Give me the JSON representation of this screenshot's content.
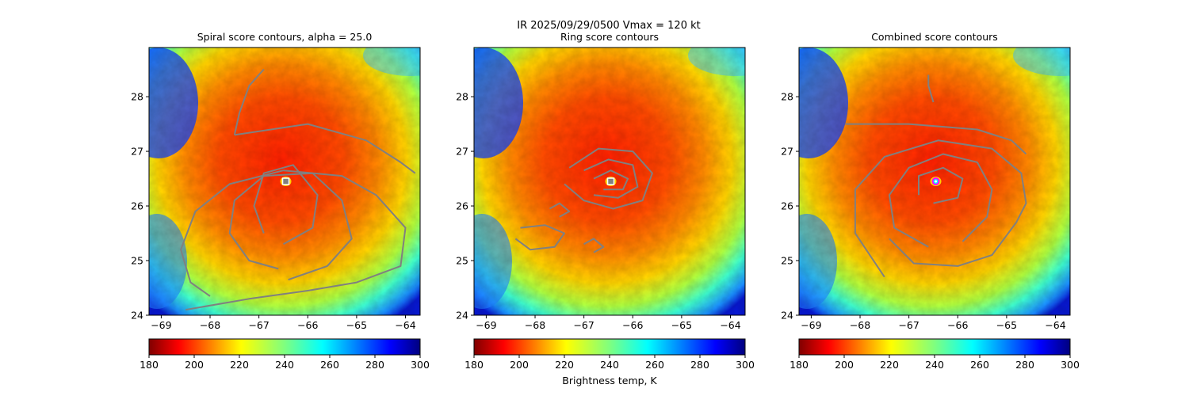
{
  "suptitle": "IR  2025/09/29/0500    Vmax = 120 kt",
  "colorbar": {
    "label": "Brightness temp, K",
    "min": 180,
    "max": 300,
    "ticks": [
      180,
      200,
      220,
      240,
      260,
      280,
      300
    ],
    "colormap": "jet_r"
  },
  "colors": {
    "contour": "#808080",
    "eye_max": "#00ffff"
  },
  "chart_data": [
    {
      "type": "heatmap",
      "title": "Spiral score contours, alpha = 25.0",
      "xlim": [
        -69.25,
        -63.7
      ],
      "ylim": [
        24.0,
        28.9
      ],
      "xticks": [
        -69,
        -68,
        -67,
        -66,
        -65,
        -64
      ],
      "yticks": [
        24,
        25,
        26,
        27,
        28
      ],
      "marker": {
        "lon": -66.45,
        "lat": 26.45,
        "style": "square"
      },
      "contours": [
        [
          [
            -68.5,
            24.1
          ],
          [
            -67.2,
            24.3
          ],
          [
            -66.0,
            24.45
          ],
          [
            -65.0,
            24.6
          ],
          [
            -64.1,
            24.9
          ],
          [
            -64.0,
            25.6
          ],
          [
            -64.6,
            26.2
          ],
          [
            -65.3,
            26.55
          ],
          [
            -66.5,
            26.65
          ],
          [
            -67.6,
            26.4
          ],
          [
            -68.3,
            25.9
          ],
          [
            -68.6,
            25.2
          ],
          [
            -68.4,
            24.6
          ],
          [
            -68.0,
            24.35
          ]
        ],
        [
          [
            -66.4,
            24.65
          ],
          [
            -65.6,
            24.9
          ],
          [
            -65.1,
            25.4
          ],
          [
            -65.3,
            26.1
          ],
          [
            -65.9,
            26.6
          ],
          [
            -66.9,
            26.55
          ],
          [
            -67.5,
            26.1
          ],
          [
            -67.6,
            25.5
          ],
          [
            -67.2,
            25.0
          ],
          [
            -66.6,
            24.85
          ]
        ],
        [
          [
            -66.5,
            25.3
          ],
          [
            -65.9,
            25.6
          ],
          [
            -65.8,
            26.2
          ],
          [
            -66.3,
            26.75
          ],
          [
            -66.9,
            26.6
          ],
          [
            -67.1,
            26.0
          ],
          [
            -66.9,
            25.5
          ]
        ],
        [
          [
            -67.5,
            27.3
          ],
          [
            -66.0,
            27.5
          ],
          [
            -64.8,
            27.2
          ],
          [
            -64.1,
            26.8
          ],
          [
            -63.8,
            26.6
          ]
        ],
        [
          [
            -67.5,
            27.3
          ],
          [
            -67.4,
            27.7
          ],
          [
            -67.2,
            28.2
          ],
          [
            -66.9,
            28.5
          ]
        ]
      ]
    },
    {
      "type": "heatmap",
      "title": "Ring score contours",
      "xlim": [
        -69.25,
        -63.7
      ],
      "ylim": [
        24.0,
        28.9
      ],
      "xticks": [
        -69,
        -68,
        -67,
        -66,
        -65,
        -64
      ],
      "yticks": [
        24,
        25,
        26,
        27,
        28
      ],
      "marker": {
        "lon": -66.45,
        "lat": 26.45,
        "style": "square"
      },
      "contours": [
        [
          [
            -67.3,
            26.7
          ],
          [
            -66.7,
            27.05
          ],
          [
            -66.0,
            27.0
          ],
          [
            -65.6,
            26.6
          ],
          [
            -65.8,
            26.1
          ],
          [
            -66.4,
            25.95
          ],
          [
            -67.0,
            26.1
          ],
          [
            -67.4,
            26.4
          ]
        ],
        [
          [
            -67.0,
            26.65
          ],
          [
            -66.5,
            26.85
          ],
          [
            -66.0,
            26.75
          ],
          [
            -65.9,
            26.35
          ],
          [
            -66.3,
            26.15
          ],
          [
            -66.8,
            26.2
          ]
        ],
        [
          [
            -66.8,
            26.5
          ],
          [
            -66.45,
            26.65
          ],
          [
            -66.1,
            26.5
          ],
          [
            -66.2,
            26.3
          ],
          [
            -66.6,
            26.3
          ]
        ],
        [
          [
            -68.3,
            25.6
          ],
          [
            -67.8,
            25.65
          ],
          [
            -67.4,
            25.5
          ],
          [
            -67.6,
            25.25
          ],
          [
            -68.1,
            25.2
          ],
          [
            -68.4,
            25.4
          ]
        ],
        [
          [
            -67.7,
            25.95
          ],
          [
            -67.5,
            26.05
          ],
          [
            -67.3,
            25.9
          ],
          [
            -67.5,
            25.8
          ]
        ],
        [
          [
            -67.0,
            25.3
          ],
          [
            -66.8,
            25.4
          ],
          [
            -66.6,
            25.25
          ],
          [
            -66.8,
            25.15
          ]
        ]
      ]
    },
    {
      "type": "heatmap",
      "title": "Combined score contours",
      "xlim": [
        -69.25,
        -63.7
      ],
      "ylim": [
        24.0,
        28.9
      ],
      "xticks": [
        -69,
        -68,
        -67,
        -66,
        -65,
        -64
      ],
      "yticks": [
        24,
        25,
        26,
        27,
        28
      ],
      "marker": {
        "lon": -66.45,
        "lat": 26.45,
        "style": "circle"
      },
      "contours": [
        [
          [
            -67.5,
            24.7
          ],
          [
            -68.1,
            25.5
          ],
          [
            -68.1,
            26.3
          ],
          [
            -67.5,
            26.9
          ],
          [
            -66.4,
            27.2
          ],
          [
            -65.3,
            27.05
          ],
          [
            -64.7,
            26.6
          ],
          [
            -64.6,
            26.05
          ],
          [
            -64.8,
            25.7
          ],
          [
            -65.3,
            25.1
          ],
          [
            -66.0,
            24.9
          ],
          [
            -66.9,
            24.95
          ],
          [
            -67.4,
            25.4
          ]
        ],
        [
          [
            -66.6,
            25.25
          ],
          [
            -67.3,
            25.6
          ],
          [
            -67.4,
            26.2
          ],
          [
            -67.0,
            26.7
          ],
          [
            -66.3,
            26.95
          ],
          [
            -65.6,
            26.8
          ],
          [
            -65.3,
            26.3
          ],
          [
            -65.4,
            25.8
          ],
          [
            -65.9,
            25.35
          ]
        ],
        [
          [
            -66.5,
            26.05
          ],
          [
            -66.0,
            26.15
          ],
          [
            -65.9,
            26.5
          ],
          [
            -66.3,
            26.7
          ],
          [
            -66.8,
            26.55
          ],
          [
            -66.8,
            26.2
          ]
        ],
        [
          [
            -68.3,
            27.5
          ],
          [
            -67.0,
            27.5
          ],
          [
            -65.6,
            27.4
          ],
          [
            -64.9,
            27.2
          ],
          [
            -64.6,
            26.95
          ]
        ],
        [
          [
            -66.5,
            27.9
          ],
          [
            -66.6,
            28.2
          ],
          [
            -66.6,
            28.4
          ]
        ]
      ]
    }
  ]
}
